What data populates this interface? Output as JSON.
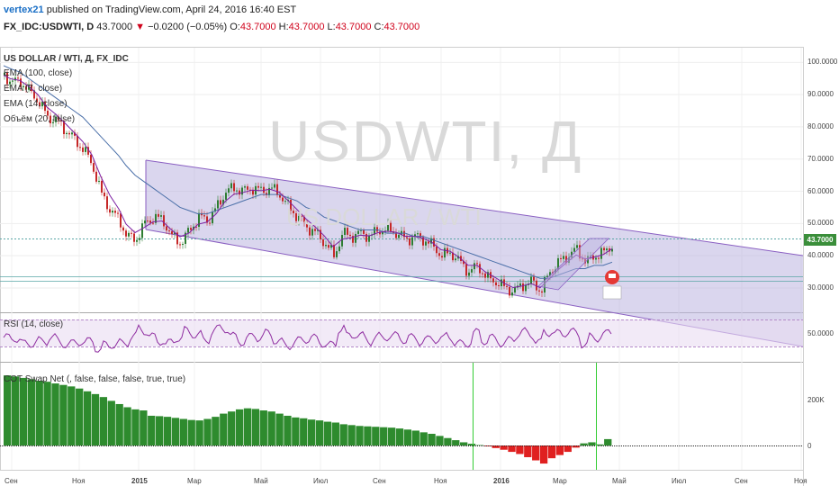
{
  "header": {
    "user": "vertex21",
    "published": "published on TradingView.com, April 24, 2016 16:40 EST",
    "symbol": "FX_IDC:USDWTI, D",
    "price": "43.7000",
    "change_arrow": "▼",
    "change": "−0.0200 (−0.05%)",
    "o_label": "O:",
    "o_value": "43.7000",
    "h_label": "H:",
    "h_value": "43.7000",
    "l_label": "L:",
    "l_value": "43.7000",
    "c_label": "C:",
    "c_value": "43.7000"
  },
  "legend": {
    "title": "US DOLLAR / WTI, Д, FX_IDC",
    "ema100": "EMA (100, close)",
    "ema7": "EMA (7, close)",
    "ema14": "EMA (14, close)",
    "volume": "Объём (20, false)",
    "rsi": "RSI (14, close)",
    "cot": "COT Swap Net (, false, false, false, true, true)"
  },
  "watermark": {
    "symbol": "USDWTI, Д",
    "name": "US DOLLAR / WTI"
  },
  "last_price_tag": "43.7000",
  "colors": {
    "candle_up": "#2e7d32",
    "candle_down": "#c62828",
    "channel_fill": "#bcb4e0",
    "channel_line": "#8a5fc2",
    "ema_long": "#4a6fa8",
    "ema_short": "#7b1fa2",
    "hist_pos": "#2e8b2e",
    "hist_neg": "#e02020",
    "rsi_line": "#8e2ca0",
    "marker_green": "#33cc33"
  },
  "chart_data": [
    {
      "type": "line",
      "title": "US DOLLAR / WTI, Д, FX_IDC",
      "x_labels": [
        "Сен",
        "Ноя",
        "2015",
        "Мар",
        "Май",
        "Июл",
        "Сен",
        "Ноя",
        "2016",
        "Мар",
        "Май",
        "Июл",
        "Сен",
        "Ноя"
      ],
      "y_ticks": [
        "100.0000",
        "90.0000",
        "80.0000",
        "70.0000",
        "60.0000",
        "50.0000",
        "40.0000",
        "30.0000"
      ],
      "ylim": [
        23,
        104
      ],
      "x": [
        0,
        8,
        18,
        28,
        38,
        48,
        58,
        68,
        78,
        88,
        98,
        108,
        118,
        128,
        136,
        146,
        156,
        166,
        176,
        186,
        196,
        206,
        216,
        226,
        236,
        246,
        256,
        266,
        276,
        286,
        296,
        306,
        316,
        326,
        336,
        346,
        356,
        366,
        376,
        386,
        396,
        406,
        416,
        426,
        436,
        446,
        456,
        466,
        476,
        486,
        496,
        506,
        516,
        526,
        536,
        546,
        556,
        566,
        576,
        586,
        596,
        606,
        616,
        626,
        636,
        646,
        656,
        666,
        676
      ],
      "close": [
        96,
        94,
        94,
        91,
        88,
        83,
        82,
        79,
        76,
        73,
        68,
        59,
        54,
        51,
        46,
        45,
        50,
        52,
        51,
        46,
        44,
        48,
        52,
        51,
        55,
        60,
        61,
        60,
        61,
        60,
        61,
        59,
        55,
        52,
        49,
        47,
        44,
        40,
        47,
        46,
        47,
        46,
        48,
        48,
        47,
        45,
        46,
        45,
        43,
        40,
        41,
        38,
        35,
        37,
        33,
        32,
        30,
        29,
        31,
        32,
        29,
        35,
        38,
        40,
        42,
        38,
        40,
        41,
        43.7
      ],
      "series": [
        {
          "name": "EMA (100, close)",
          "values": [
            99,
            98,
            97,
            95,
            93,
            91,
            89,
            87,
            85,
            83,
            80,
            77,
            74,
            71,
            68,
            65,
            63,
            61,
            59,
            57,
            55,
            54,
            53,
            53,
            54,
            55,
            56,
            57,
            58,
            59,
            59,
            59,
            58,
            57,
            55,
            54,
            52,
            51,
            50,
            49,
            48,
            48,
            48,
            47,
            47,
            47,
            46,
            46,
            45,
            44,
            43,
            42,
            41,
            40,
            39,
            38,
            37,
            36,
            35,
            34,
            33,
            33,
            34,
            35,
            36,
            36,
            37,
            37,
            38
          ]
        }
      ]
    },
    {
      "type": "line",
      "title": "RSI (14, close)",
      "y_ticks": [
        "50.0000"
      ],
      "ylim": [
        0,
        100
      ]
    },
    {
      "type": "bar",
      "title": "COT Swap Net (, false, false, false, true, true)",
      "y_ticks": [
        "200K",
        "0"
      ],
      "ylim": [
        -90000,
        360000
      ],
      "values": [
        330000,
        325000,
        318000,
        312000,
        305000,
        300000,
        292000,
        285000,
        278000,
        268000,
        255000,
        242000,
        228000,
        210000,
        195000,
        180000,
        170000,
        165000,
        140000,
        138000,
        135000,
        130000,
        125000,
        120000,
        118000,
        125000,
        135000,
        150000,
        160000,
        170000,
        175000,
        172000,
        165000,
        160000,
        150000,
        140000,
        132000,
        128000,
        122000,
        118000,
        112000,
        108000,
        100000,
        96000,
        92000,
        90000,
        88000,
        86000,
        84000,
        80000,
        75000,
        70000,
        62000,
        55000,
        45000,
        35000,
        25000,
        15000,
        8000,
        2000,
        -4000,
        -12000,
        -20000,
        -30000,
        -40000,
        -55000,
        -70000,
        -85000,
        -60000,
        -45000,
        -30000,
        -10000,
        10000,
        15000,
        5000,
        30000
      ]
    }
  ]
}
